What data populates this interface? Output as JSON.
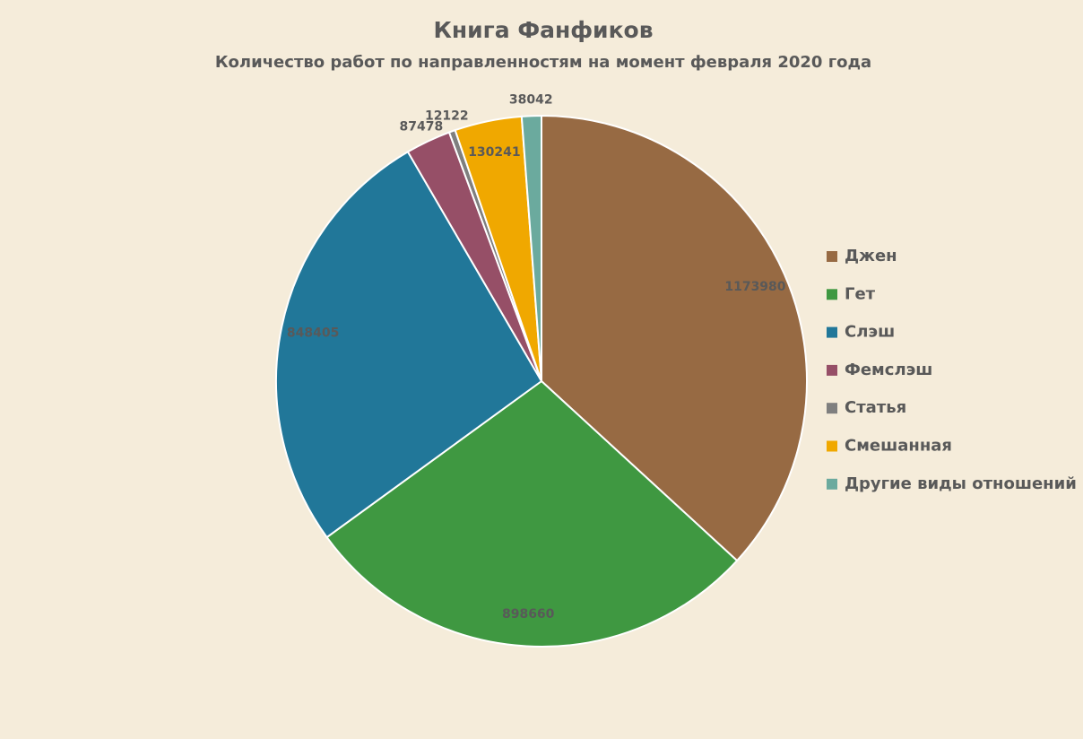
{
  "chart_data": {
    "type": "pie",
    "title": "Книга Фанфиков",
    "subtitle": "Количество работ по направленностям на момент февраля 2020 года",
    "categories": [
      "Джен",
      "Гет",
      "Слэш",
      "Фемслэш",
      "Статья",
      "Смешанная",
      "Другие виды отношений"
    ],
    "values": [
      1173980,
      898660,
      848405,
      87478,
      12122,
      130241,
      38042
    ],
    "colors": [
      "#976a43",
      "#3f9841",
      "#217799",
      "#964f67",
      "#7f7f7f",
      "#f0a800",
      "#6baa9e"
    ],
    "legend": "right"
  }
}
